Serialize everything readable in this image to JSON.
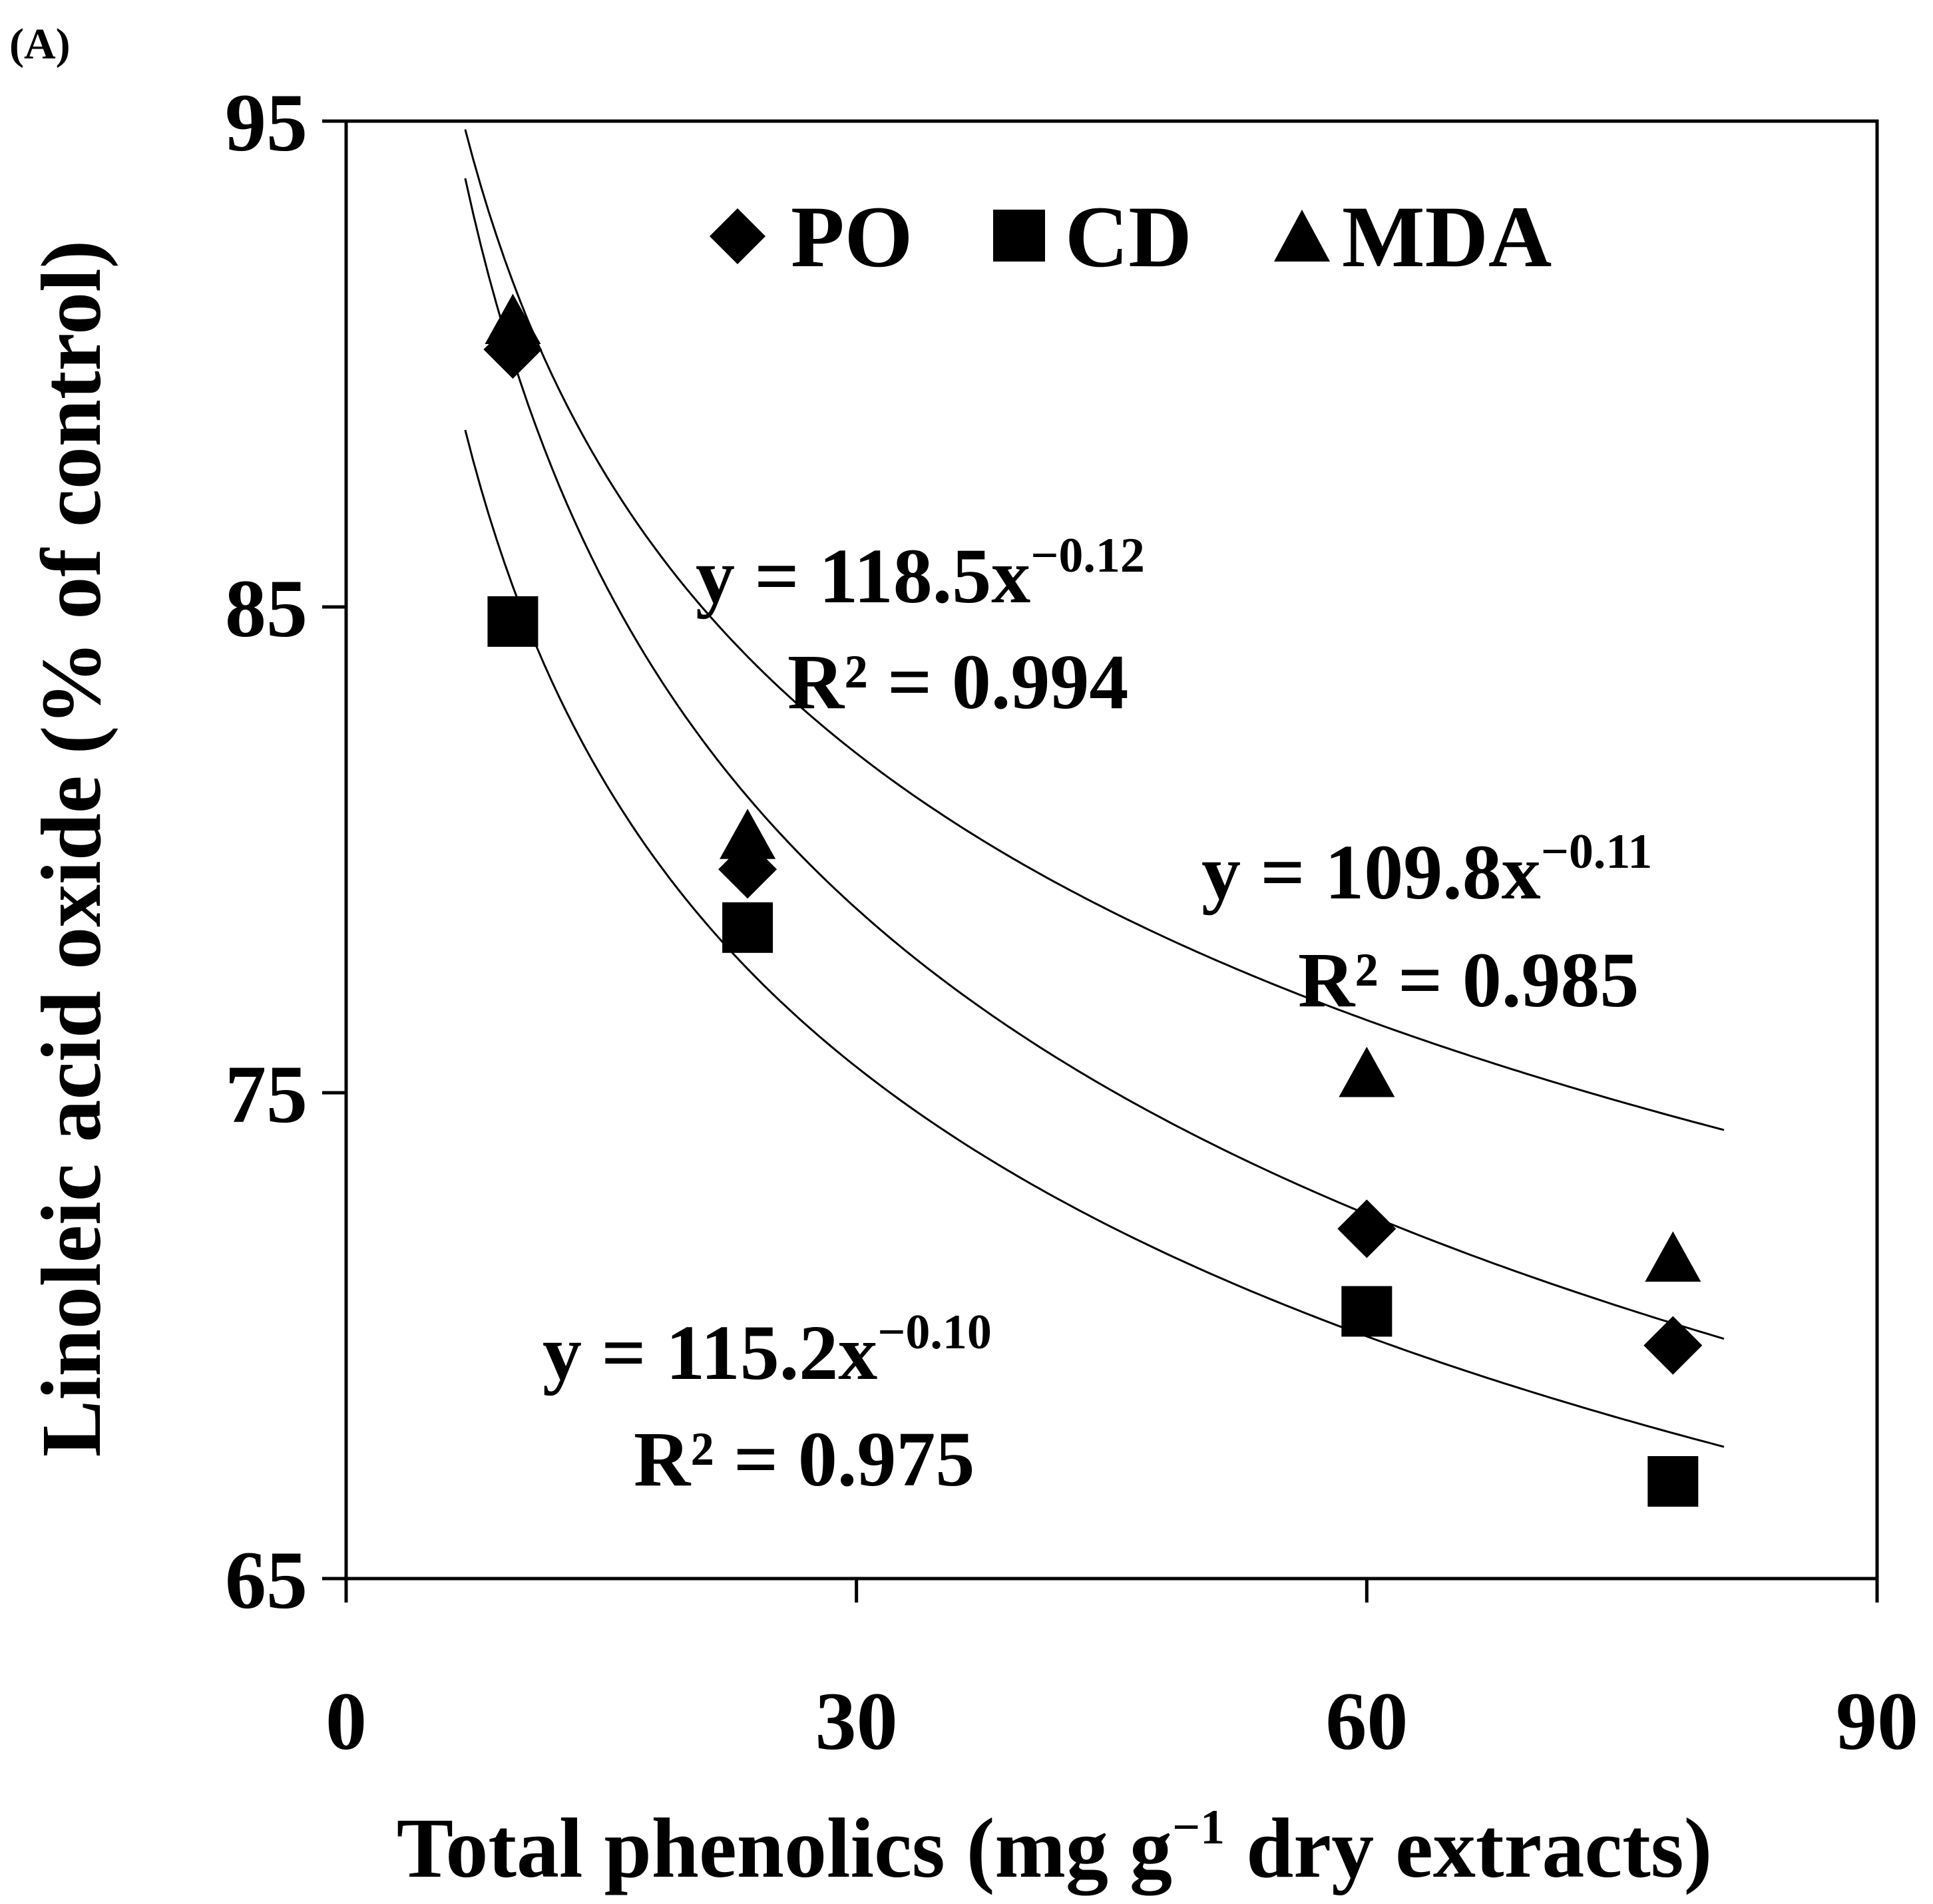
{
  "panel_label": "(A)",
  "chart_data": {
    "type": "scatter",
    "title": "",
    "xlabel": {
      "main": "Total phenolics (mg g",
      "sup": "−1",
      "rest": " dry extracts)"
    },
    "ylabel": "Linoleic acid oxide (% of control)",
    "xlim": [
      0,
      90
    ],
    "ylim": [
      65,
      95
    ],
    "xticks": [
      0,
      30,
      60,
      90
    ],
    "yticks": [
      65,
      75,
      85,
      95
    ],
    "legend_position": "top-center",
    "series": [
      {
        "name": "PO",
        "marker": "diamond",
        "x": [
          9.8,
          23.6,
          60.0,
          78.0
        ],
        "y": [
          90.3,
          79.6,
          72.2,
          69.8
        ],
        "fit": {
          "a": 109.8,
          "b": -0.11,
          "x_range": [
            7,
            81
          ]
        }
      },
      {
        "name": "CD",
        "marker": "square",
        "x": [
          9.8,
          23.6,
          60.0,
          78.0
        ],
        "y": [
          84.7,
          78.4,
          70.5,
          67.0
        ],
        "fit": {
          "a": 115.2,
          "b": -0.1,
          "x_range": [
            7,
            81
          ]
        }
      },
      {
        "name": "MDA",
        "marker": "triangle",
        "x": [
          9.8,
          23.6,
          60.0,
          78.0
        ],
        "y": [
          90.9,
          80.3,
          75.4,
          71.6
        ],
        "fit": {
          "a": 118.5,
          "b": -0.12,
          "x_range": [
            7,
            81
          ]
        }
      }
    ],
    "annotations": [
      {
        "eq_main": "y = 118.5x",
        "eq_sup": "−0.12",
        "r2": "R² = 0.994"
      },
      {
        "eq_main": "y = 109.8x",
        "eq_sup": "−0.11",
        "r2": "R² = 0.985"
      },
      {
        "eq_main": "y = 115.2x",
        "eq_sup": "−0.10",
        "r2": "R² = 0.975"
      }
    ]
  }
}
